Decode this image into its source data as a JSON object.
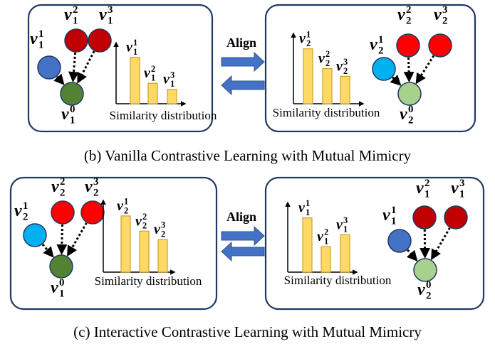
{
  "colors": {
    "panel_border": "#1f3864",
    "bar_fill": "#ffd966",
    "bar_stroke": "#c9a227",
    "arrow": "#4472c4",
    "anchor_v1": "#548235",
    "anchor_v2": "#a9d18e",
    "sample_v1_low": "#4472c4",
    "sample_v1_high": "#c00000",
    "sample_v2_low": "#00b0f0",
    "sample_v2_high": "#ff0000"
  },
  "sections": [
    {
      "caption": "(b) Vanilla Contrastive Learning with Mutual Mimicry",
      "align_label": "Align",
      "panels": [
        {
          "nodes": [
            {
              "label": "v",
              "sup": "1",
              "sub": "1",
              "color_key": "sample_v1_low"
            },
            {
              "label": "v",
              "sup": "2",
              "sub": "1",
              "color_key": "sample_v1_high"
            },
            {
              "label": "v",
              "sup": "3",
              "sub": "1",
              "color_key": "sample_v1_high"
            },
            {
              "label": "v",
              "sup": "0",
              "sub": "1",
              "color_key": "anchor_v1"
            }
          ],
          "chart_data": {
            "type": "bar",
            "title": "Similarity distribution",
            "categories": [
              "v_1^1",
              "v_1^2",
              "v_1^3"
            ],
            "values": [
              1.0,
              0.44,
              0.31
            ],
            "ylim": [
              0,
              1.1
            ]
          }
        },
        {
          "nodes": [
            {
              "label": "v",
              "sup": "1",
              "sub": "2",
              "color_key": "sample_v2_low"
            },
            {
              "label": "v",
              "sup": "2",
              "sub": "2",
              "color_key": "sample_v2_high"
            },
            {
              "label": "v",
              "sup": "3",
              "sub": "2",
              "color_key": "sample_v2_high"
            },
            {
              "label": "v",
              "sup": "0",
              "sub": "2",
              "color_key": "anchor_v2"
            }
          ],
          "chart_data": {
            "type": "bar",
            "title": "Similarity distribution",
            "categories": [
              "v_2^1",
              "v_2^2",
              "v_2^3"
            ],
            "values": [
              1.0,
              0.64,
              0.5
            ],
            "ylim": [
              0,
              1.1
            ]
          }
        }
      ]
    },
    {
      "caption": "(c) Interactive Contrastive Learning with Mutual Mimicry",
      "align_label": "Align",
      "panels": [
        {
          "nodes": [
            {
              "label": "v",
              "sup": "1",
              "sub": "2",
              "color_key": "sample_v2_low"
            },
            {
              "label": "v",
              "sup": "2",
              "sub": "2",
              "color_key": "sample_v2_high"
            },
            {
              "label": "v",
              "sup": "3",
              "sub": "2",
              "color_key": "sample_v2_high"
            },
            {
              "label": "v",
              "sup": "0",
              "sub": "1",
              "color_key": "anchor_v1"
            }
          ],
          "chart_data": {
            "type": "bar",
            "title": "Similarity distribution",
            "categories": [
              "v_2^1",
              "v_2^2",
              "v_2^3"
            ],
            "values": [
              1.0,
              0.73,
              0.58
            ],
            "ylim": [
              0,
              1.1
            ]
          }
        },
        {
          "nodes": [
            {
              "label": "v",
              "sup": "1",
              "sub": "1",
              "color_key": "sample_v1_low"
            },
            {
              "label": "v",
              "sup": "2",
              "sub": "1",
              "color_key": "sample_v1_high"
            },
            {
              "label": "v",
              "sup": "3",
              "sub": "1",
              "color_key": "sample_v1_high"
            },
            {
              "label": "v",
              "sup": "0",
              "sub": "2",
              "color_key": "anchor_v2"
            }
          ],
          "chart_data": {
            "type": "bar",
            "title": "Similarity distribution",
            "categories": [
              "v_1^1",
              "v_1^2",
              "v_1^3"
            ],
            "values": [
              1.0,
              0.47,
              0.69
            ],
            "ylim": [
              0,
              1.1
            ]
          }
        }
      ]
    }
  ]
}
